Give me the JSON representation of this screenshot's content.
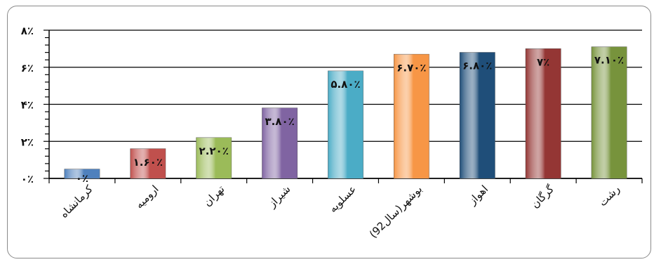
{
  "chart_data": {
    "type": "bar",
    "categories": [
      "کرمانشاه",
      "ارومیه",
      "تهران",
      "شیراز",
      "عسلویه",
      "بوشهر(سال92)",
      "اهواز",
      "گرگان",
      "رشت"
    ],
    "values": [
      0,
      1.6,
      2.2,
      3.8,
      5.8,
      6.7,
      6.8,
      7.0,
      7.1
    ],
    "value_labels": [
      "۰٪",
      "۱.۶۰٪",
      "۲.۲۰٪",
      "۳.۸۰٪",
      "۵.۸۰٪",
      "۶.۷۰٪",
      "۶.۸۰٪",
      "۷٪",
      "۷.۱۰٪"
    ],
    "colors": [
      "#4f81bd",
      "#c0504d",
      "#9bbb59",
      "#8064a2",
      "#4bacc6",
      "#f79646",
      "#1f4e79",
      "#943634",
      "#77933c"
    ],
    "ylim": [
      0,
      8
    ],
    "yticks": [
      0,
      2,
      4,
      6,
      8
    ],
    "ytick_labels": [
      "۰٪",
      "۲٪",
      "۴٪",
      "۶٪",
      "۸٪"
    ],
    "grid": true,
    "legend": "none"
  }
}
